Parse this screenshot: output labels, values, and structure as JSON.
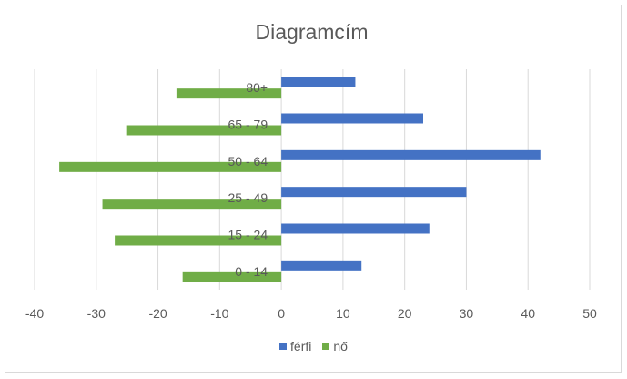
{
  "chart_data": {
    "type": "bar",
    "orientation": "horizontal",
    "title": "Diagramcím",
    "categories": [
      "0 - 14",
      "15 - 24",
      "25 - 49",
      "50 - 64",
      "65 - 79",
      "80+"
    ],
    "series": [
      {
        "name": "férfi",
        "color": "#4472c4",
        "values": [
          13,
          24,
          30,
          42,
          23,
          12
        ]
      },
      {
        "name": "nő",
        "color": "#70ad47",
        "values": [
          -16,
          -27,
          -29,
          -36,
          -25,
          -17
        ]
      }
    ],
    "xlim": [
      -40,
      50
    ],
    "xticks": [
      -40,
      -30,
      -20,
      -10,
      0,
      10,
      20,
      30,
      40,
      50
    ],
    "grid": true,
    "legend_position": "bottom"
  }
}
